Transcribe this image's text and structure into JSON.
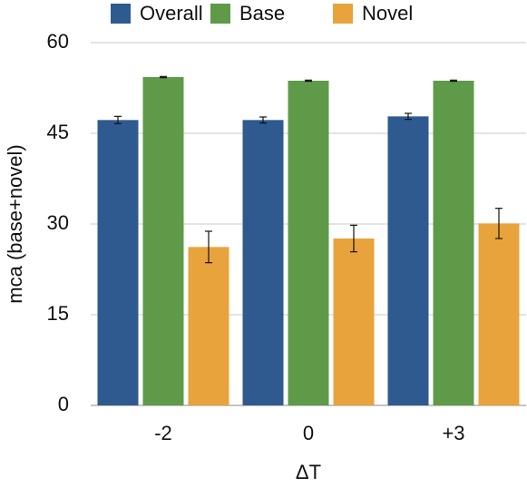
{
  "chart_data": {
    "type": "bar",
    "x_label": "ΔT",
    "y_label": "mca (base+novel)",
    "categories": [
      "-2",
      "0",
      "+3"
    ],
    "series": [
      {
        "name": "Overall",
        "color": "#2f5a8f",
        "values": [
          47.2,
          47.2,
          47.8
        ],
        "errors": [
          0.6,
          0.5,
          0.5
        ]
      },
      {
        "name": "Base",
        "color": "#5f9a49",
        "values": [
          54.3,
          53.7,
          53.7
        ],
        "errors": [
          0.1,
          0.1,
          0.1
        ]
      },
      {
        "name": "Novel",
        "color": "#e8a33d",
        "values": [
          26.2,
          27.6,
          30.1
        ],
        "errors": [
          2.6,
          2.2,
          2.5
        ]
      }
    ],
    "ylim": [
      0,
      60
    ],
    "yticks": [
      0,
      15,
      30,
      45,
      60
    ],
    "grid": true,
    "legend": "top"
  }
}
